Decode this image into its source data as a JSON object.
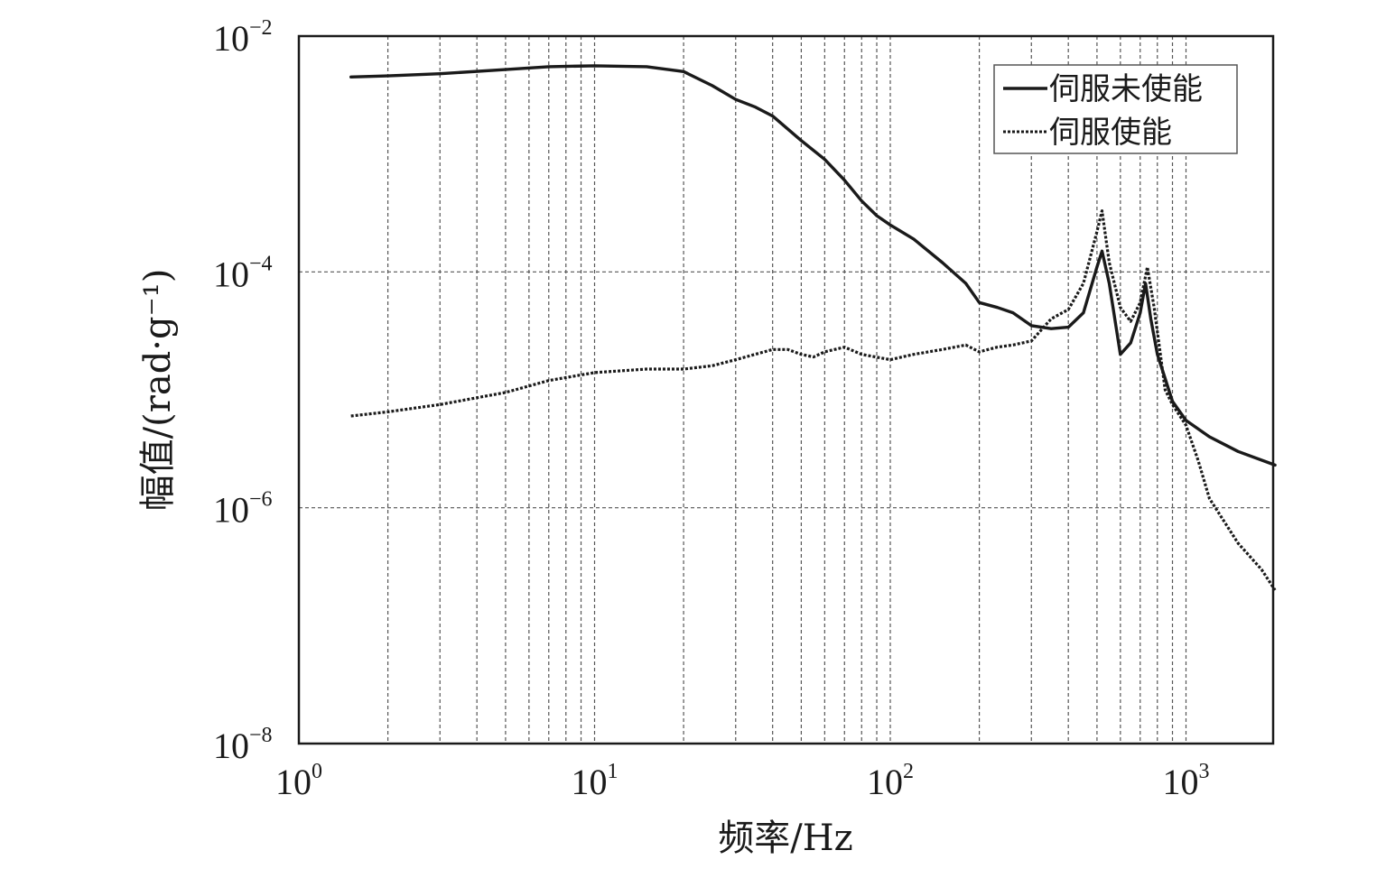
{
  "chart_data": {
    "type": "line",
    "xscale": "log",
    "yscale": "log",
    "xlabel": "频率/Hz",
    "ylabel": "幅值/(rad·g⁻¹)",
    "xlim": [
      1,
      2000
    ],
    "ylim": [
      1e-08,
      0.01
    ],
    "grid": true,
    "legend_position": "top-right",
    "x_ticks": [
      {
        "base": "10",
        "exp": "0",
        "value": 1
      },
      {
        "base": "10",
        "exp": "1",
        "value": 10
      },
      {
        "base": "10",
        "exp": "2",
        "value": 100
      },
      {
        "base": "10",
        "exp": "3",
        "value": 1000
      }
    ],
    "y_ticks": [
      {
        "base": "10",
        "exp": "−2",
        "value": 0.01
      },
      {
        "base": "10",
        "exp": "−4",
        "value": 0.0001
      },
      {
        "base": "10",
        "exp": "−6",
        "value": 1e-06
      },
      {
        "base": "10",
        "exp": "−8",
        "value": 1e-08
      }
    ],
    "series": [
      {
        "name": "伺服未使能",
        "style": "solid",
        "color": "#1a1a1a",
        "x": [
          1.5,
          2,
          3,
          5,
          7,
          10,
          15,
          20,
          25,
          30,
          35,
          40,
          50,
          60,
          70,
          80,
          90,
          100,
          120,
          150,
          180,
          200,
          230,
          260,
          300,
          350,
          400,
          450,
          500,
          520,
          550,
          600,
          650,
          700,
          730,
          760,
          800,
          900,
          1000,
          1200,
          1500,
          2000
        ],
        "y": [
          0.0045,
          0.0046,
          0.0048,
          0.0052,
          0.0055,
          0.0056,
          0.0055,
          0.005,
          0.0038,
          0.0029,
          0.0025,
          0.0021,
          0.0013,
          0.0009,
          0.0006,
          0.0004,
          0.0003,
          0.00025,
          0.00019,
          0.00012,
          8e-05,
          5.5e-05,
          5e-05,
          4.5e-05,
          3.5e-05,
          3.3e-05,
          3.4e-05,
          4.5e-05,
          0.00011,
          0.00015,
          8e-05,
          2e-05,
          2.5e-05,
          4.5e-05,
          8e-05,
          4e-05,
          2e-05,
          8e-06,
          5.5e-06,
          4e-06,
          3e-06,
          2.3e-06
        ]
      },
      {
        "name": "伺服使能",
        "style": "dashed",
        "color": "#1a1a1a",
        "x": [
          1.5,
          2,
          3,
          5,
          7,
          10,
          15,
          20,
          25,
          30,
          40,
          45,
          50,
          55,
          60,
          70,
          80,
          100,
          120,
          150,
          180,
          200,
          230,
          260,
          300,
          350,
          400,
          450,
          500,
          520,
          550,
          600,
          650,
          700,
          740,
          780,
          850,
          900,
          1000,
          1100,
          1200,
          1500,
          1800,
          2000
        ],
        "y": [
          6e-06,
          6.5e-06,
          7.5e-06,
          9.5e-06,
          1.2e-05,
          1.4e-05,
          1.5e-05,
          1.5e-05,
          1.6e-05,
          1.8e-05,
          2.2e-05,
          2.2e-05,
          2e-05,
          1.9e-05,
          2.1e-05,
          2.3e-05,
          2e-05,
          1.8e-05,
          2e-05,
          2.2e-05,
          2.4e-05,
          2.1e-05,
          2.3e-05,
          2.4e-05,
          2.6e-05,
          4e-05,
          4.8e-05,
          8e-05,
          0.00022,
          0.00033,
          0.00012,
          5e-05,
          3.8e-05,
          5.5e-05,
          0.00011,
          5e-05,
          1e-05,
          7.5e-06,
          5e-06,
          2.5e-06,
          1.2e-06,
          5e-07,
          3e-07,
          2e-07
        ]
      }
    ]
  }
}
